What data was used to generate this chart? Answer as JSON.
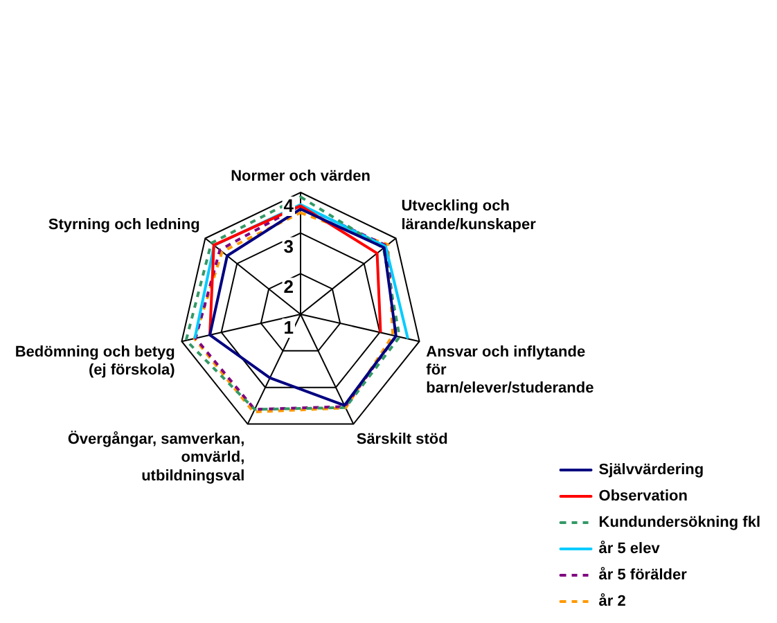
{
  "chart_data": {
    "type": "radar",
    "categories": [
      "Normer och värden",
      "Utveckling och lärande/kunskaper",
      "Ansvar och inflytande för barn/elever/studerande",
      "Särskilt stöd",
      "Övergångar, samverkan, omvärld, utbildningsval",
      "Bedömning och betyg (ej förskola)",
      "Styrning och ledning"
    ],
    "series": [
      {
        "name": "Självvärdering",
        "color": "#000080",
        "line_style": "solid",
        "values": [
          3.59,
          3.63,
          3.41,
          3.49,
          2.74,
          3.29,
          3.31
        ]
      },
      {
        "name": "Observation",
        "color": "#ff0000",
        "line_style": "solid",
        "values": [
          3.67,
          3.41,
          3.02,
          null,
          null,
          3.29,
          3.73
        ]
      },
      {
        "name": "Kundundersökning fkl",
        "color": "#339966",
        "line_style": "dashed",
        "values": [
          3.89,
          3.61,
          3.5,
          3.55,
          3.6,
          3.89,
          3.81
        ]
      },
      {
        "name": "år 5 elev",
        "color": "#00ccff",
        "line_style": "solid",
        "values": [
          3.7,
          3.68,
          3.71,
          null,
          null,
          3.67,
          3.72
        ]
      },
      {
        "name": "år 5 förälder",
        "color": "#800080",
        "line_style": "dashed",
        "values": [
          3.68,
          3.71,
          3.41,
          3.52,
          3.6,
          3.65,
          3.54
        ]
      },
      {
        "name": "år 2",
        "color": "#ff9900",
        "line_style": "dashed",
        "values": [
          3.5,
          3.75,
          3.33,
          3.56,
          3.67,
          3.68,
          3.47
        ]
      }
    ],
    "ylim": [
      1,
      4
    ],
    "yticks": [
      1,
      2,
      3,
      4
    ],
    "legend": "bottom right",
    "marker": "none"
  }
}
